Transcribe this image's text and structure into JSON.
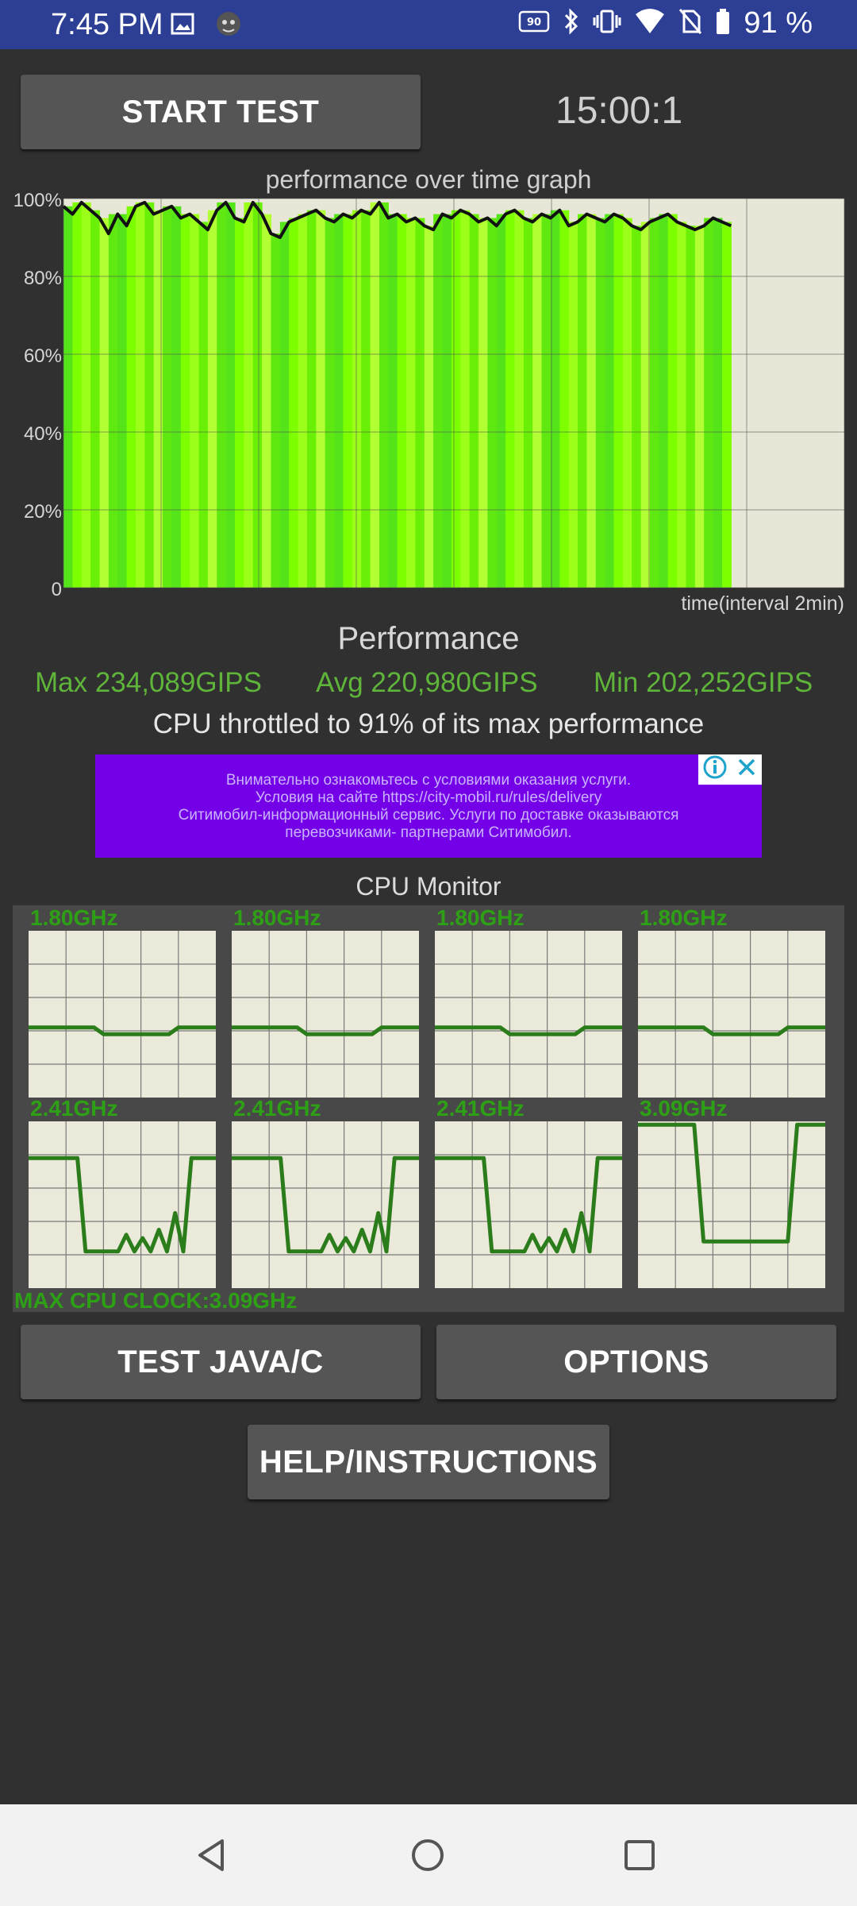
{
  "status_bar": {
    "time": "7:45 PM",
    "battery": "91 %",
    "icons": [
      "image-icon",
      "app-icon",
      "90hz-icon",
      "bluetooth-icon",
      "vibrate-icon",
      "wifi-icon",
      "no-sim-icon",
      "battery-icon"
    ],
    "refresh_badge": "90"
  },
  "toolbar": {
    "start_label": "START TEST",
    "timer": "15:00:1"
  },
  "graph": {
    "title": "performance over time graph",
    "y_ticks": [
      "100%",
      "80%",
      "60%",
      "40%",
      "20%",
      "0"
    ],
    "x_label": "time(interval 2min)"
  },
  "chart_data": {
    "type": "area",
    "title": "performance over time graph",
    "xlabel": "time(interval 2min)",
    "ylabel": "",
    "ylim": [
      0,
      100
    ],
    "y_ticks": [
      0,
      20,
      40,
      60,
      80,
      100
    ],
    "grid": true,
    "x": [
      0,
      1,
      2,
      3,
      4,
      5,
      6,
      7,
      8,
      9,
      10,
      11,
      12,
      13,
      14,
      15,
      16,
      17,
      18,
      19,
      20,
      21,
      22,
      23,
      24,
      25,
      26,
      27,
      28,
      29,
      30,
      31,
      32,
      33,
      34,
      35,
      36,
      37,
      38,
      39,
      40,
      41,
      42,
      43,
      44,
      45,
      46,
      47,
      48,
      49,
      50,
      51,
      52,
      53,
      54,
      55,
      56,
      57,
      58,
      59,
      60,
      61,
      62,
      63,
      64,
      65,
      66,
      67,
      68,
      69,
      70,
      71,
      72,
      73,
      74
    ],
    "series": [
      {
        "values": [
          98,
          96,
          99,
          97,
          95,
          91,
          96,
          93,
          98,
          99,
          96,
          97,
          98,
          95,
          96,
          94,
          92,
          97,
          99,
          95,
          94,
          99,
          96,
          91,
          90,
          94,
          95,
          96,
          97,
          95,
          94,
          96,
          95,
          97,
          96,
          99,
          95,
          96,
          94,
          95,
          93,
          92,
          96,
          95,
          97,
          96,
          94,
          95,
          93,
          96,
          97,
          95,
          94,
          96,
          95,
          97,
          93,
          94,
          96,
          95,
          94,
          96,
          95,
          93,
          92,
          94,
          95,
          96,
          94,
          93,
          92,
          93,
          95,
          94,
          93
        ]
      }
    ],
    "notes_fill": "green bars under line"
  },
  "performance": {
    "title": "Performance",
    "max": "Max 234,089GIPS",
    "avg": "Avg 220,980GIPS",
    "min": "Min 202,252GIPS",
    "throttle": "CPU throttled to 91% of its max performance"
  },
  "ad": {
    "line1": "Внимательно ознакомьтесь с условиями оказания услуги.",
    "line2": "Условия на сайте https://city-mobil.ru/rules/delivery",
    "line3": "Ситимобил-информационный сервис. Услуги по доставке оказываются",
    "line4": "перевозчиками- партнерами Ситимобил."
  },
  "cpu_monitor": {
    "title": "CPU Monitor",
    "cores": [
      {
        "label": "1.80GHz",
        "levels": [
          0.42,
          0.42,
          0.42,
          0.42,
          0.42,
          0.42,
          0.42,
          0.42,
          0.38,
          0.38,
          0.38,
          0.38,
          0.38,
          0.38,
          0.38,
          0.38,
          0.42,
          0.42,
          0.42,
          0.42,
          0.42
        ]
      },
      {
        "label": "1.80GHz",
        "levels": [
          0.42,
          0.42,
          0.42,
          0.42,
          0.42,
          0.42,
          0.42,
          0.42,
          0.38,
          0.38,
          0.38,
          0.38,
          0.38,
          0.38,
          0.38,
          0.38,
          0.42,
          0.42,
          0.42,
          0.42,
          0.42
        ]
      },
      {
        "label": "1.80GHz",
        "levels": [
          0.42,
          0.42,
          0.42,
          0.42,
          0.42,
          0.42,
          0.42,
          0.42,
          0.38,
          0.38,
          0.38,
          0.38,
          0.38,
          0.38,
          0.38,
          0.38,
          0.42,
          0.42,
          0.42,
          0.42,
          0.42
        ]
      },
      {
        "label": "1.80GHz",
        "levels": [
          0.42,
          0.42,
          0.42,
          0.42,
          0.42,
          0.42,
          0.42,
          0.42,
          0.38,
          0.38,
          0.38,
          0.38,
          0.38,
          0.38,
          0.38,
          0.38,
          0.42,
          0.42,
          0.42,
          0.42,
          0.42
        ]
      },
      {
        "label": "2.41GHz",
        "levels": [
          0.78,
          0.78,
          0.78,
          0.78,
          0.78,
          0.78,
          0.78,
          0.22,
          0.22,
          0.22,
          0.22,
          0.22,
          0.32,
          0.22,
          0.3,
          0.22,
          0.35,
          0.22,
          0.45,
          0.22,
          0.78,
          0.78,
          0.78,
          0.78
        ]
      },
      {
        "label": "2.41GHz",
        "levels": [
          0.78,
          0.78,
          0.78,
          0.78,
          0.78,
          0.78,
          0.78,
          0.22,
          0.22,
          0.22,
          0.22,
          0.22,
          0.32,
          0.22,
          0.3,
          0.22,
          0.35,
          0.22,
          0.45,
          0.22,
          0.78,
          0.78,
          0.78,
          0.78
        ]
      },
      {
        "label": "2.41GHz",
        "levels": [
          0.78,
          0.78,
          0.78,
          0.78,
          0.78,
          0.78,
          0.78,
          0.22,
          0.22,
          0.22,
          0.22,
          0.22,
          0.32,
          0.22,
          0.3,
          0.22,
          0.35,
          0.22,
          0.45,
          0.22,
          0.78,
          0.78,
          0.78,
          0.78
        ]
      },
      {
        "label": "3.09GHz",
        "levels": [
          0.98,
          0.98,
          0.98,
          0.98,
          0.98,
          0.98,
          0.98,
          0.28,
          0.28,
          0.28,
          0.28,
          0.28,
          0.28,
          0.28,
          0.28,
          0.28,
          0.28,
          0.98,
          0.98,
          0.98,
          0.98
        ]
      }
    ],
    "max_clock": "MAX CPU CLOCK:3.09GHz"
  },
  "buttons": {
    "test_java": "TEST JAVA/C",
    "options": "OPTIONS",
    "help": "HELP/INSTRUCTIONS"
  },
  "navbar": {
    "icons": [
      "back-icon",
      "home-icon",
      "recents-icon"
    ]
  }
}
